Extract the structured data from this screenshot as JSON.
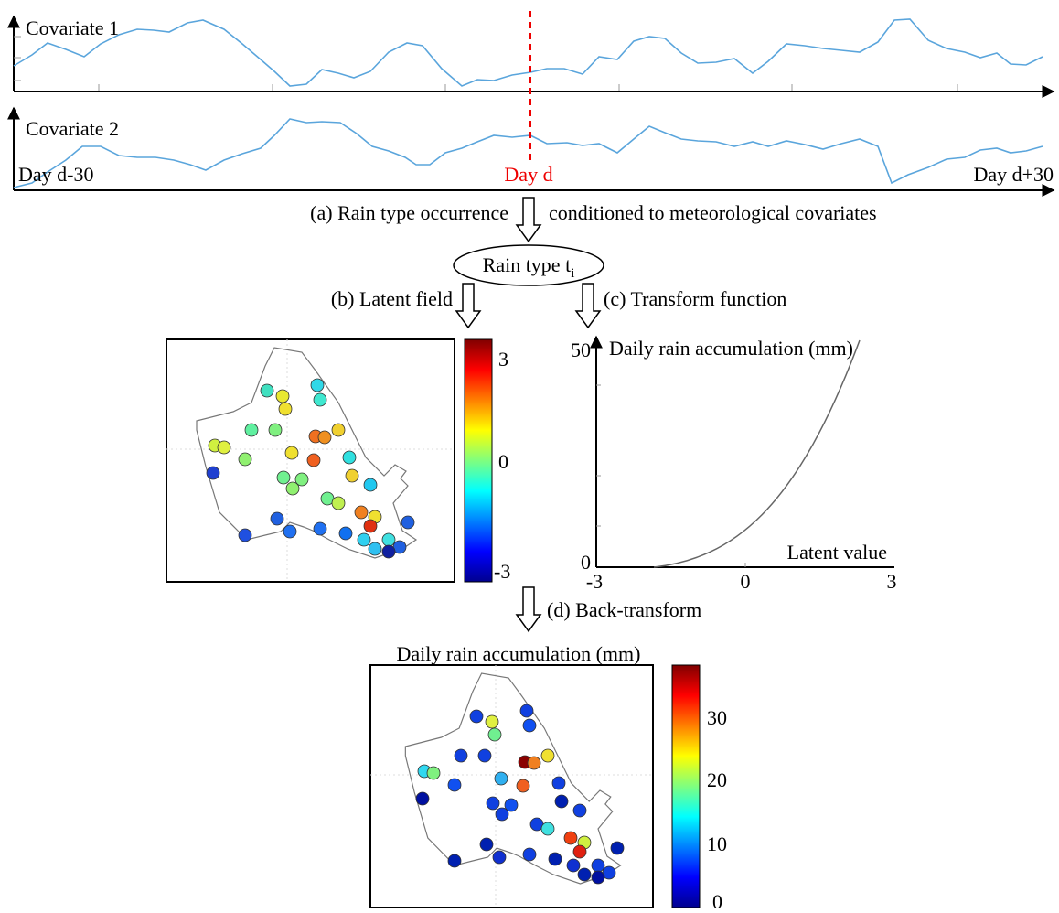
{
  "covariates": {
    "labels": [
      "Covariate 1",
      "Covariate 2"
    ],
    "day_start": "Day d-30",
    "day_mid": "Day d",
    "day_end": "Day d+30"
  },
  "steps": {
    "a_left": "(a) Rain type occurrence",
    "a_right": "conditioned to meteorological covariates",
    "node": {
      "label": "Rain type t",
      "subscript": "i"
    },
    "b": "(b) Latent field",
    "c": "(c) Transform function",
    "d": "(d) Back-transform"
  },
  "latent_map": {
    "colorbar_ticks": [
      "3",
      "0",
      "-3"
    ]
  },
  "transform_plot": {
    "y_label": "Daily rain accumulation (mm)",
    "x_label": "Latent value",
    "y_ticks": [
      "50",
      "0"
    ],
    "x_ticks": [
      "-3",
      "0",
      "3"
    ]
  },
  "rain_map": {
    "title": "Daily rain accumulation (mm)",
    "colorbar_ticks": [
      "30",
      "20",
      "10",
      "0"
    ]
  }
}
